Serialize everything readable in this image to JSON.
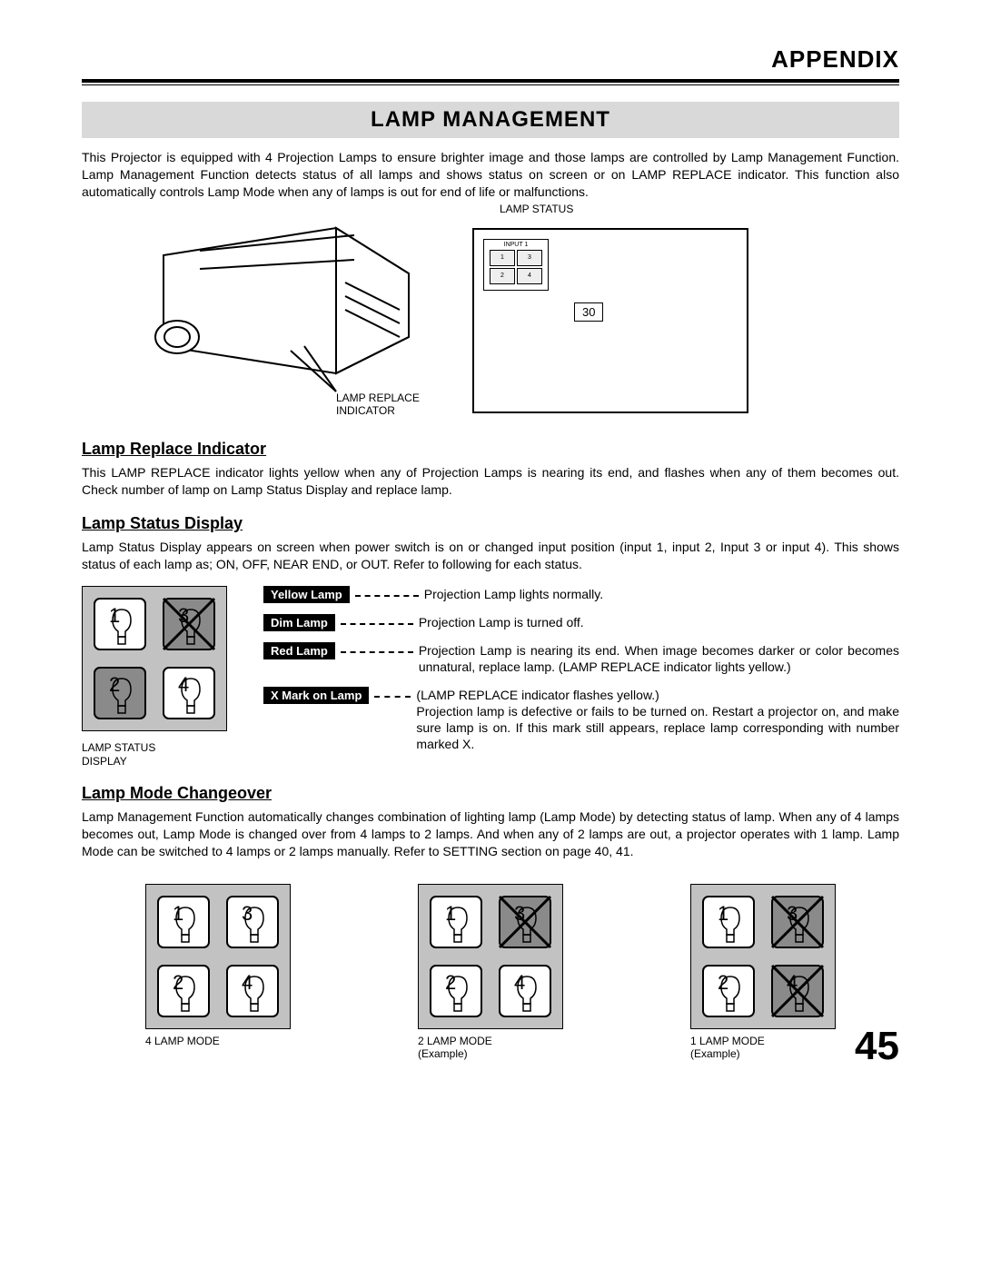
{
  "header": {
    "title": "APPENDIX"
  },
  "section": {
    "title": "LAMP MANAGEMENT"
  },
  "intro": "This Projector is equipped with 4 Projection Lamps to ensure brighter image and those lamps are controlled by Lamp Management Function.  Lamp Management Function detects status of all lamps and shows status on screen or on LAMP REPLACE indicator.  This function also automatically controls Lamp Mode when any of lamps is out for end of life or malfunctions.",
  "fig": {
    "lamp_replace_caption": "LAMP REPLACE\nINDICATOR",
    "lamp_status_label": "LAMP STATUS",
    "screen_input_label": "INPUT 1",
    "screen_number": "30"
  },
  "replace": {
    "title": "Lamp Replace Indicator",
    "text": "This LAMP REPLACE indicator lights yellow when any of Projection Lamps is nearing its end, and flashes when any of them becomes out.  Check number of lamp on Lamp Status Display and replace lamp."
  },
  "status": {
    "title": "Lamp Status Display",
    "text": "Lamp Status Display appears on screen when power switch is on or changed input position (input 1, input 2, Input 3 or input 4). This shows status of each lamp as; ON, OFF, NEAR END, or OUT.  Refer to following for each status.",
    "display_caption": "LAMP STATUS\nDISPLAY",
    "lamp_numbers": [
      "1",
      "2",
      "3",
      "4"
    ],
    "legend": [
      {
        "label": "Yellow Lamp",
        "text": "Projection Lamp lights normally."
      },
      {
        "label": "Dim Lamp",
        "text": "Projection Lamp is turned off."
      },
      {
        "label": "Red Lamp",
        "text": "Projection Lamp is nearing its end.  When image becomes darker or color becomes unnatural, replace lamp.  (LAMP REPLACE indicator lights yellow.)"
      },
      {
        "label": "X Mark on Lamp",
        "text": "(LAMP REPLACE indicator flashes yellow.)\nProjection lamp is defective or fails to be turned on. Restart a projector on, and make sure lamp is on. If this mark still appears, replace lamp corresponding with number marked X."
      }
    ]
  },
  "mode": {
    "title": "Lamp Mode Changeover",
    "text": "Lamp Management Function automatically changes combination of lighting lamp (Lamp Mode) by detecting status of lamp. When any of 4 lamps becomes out, Lamp Mode is changed over from 4 lamps to 2 lamps.  And when any of 2 lamps are out, a projector operates with 1 lamp.  Lamp Mode can be switched to 4 lamps or 2 lamps manually.  Refer to SETTING section on page 40, 41.",
    "items": [
      {
        "caption": "4 LAMP MODE",
        "x_marks": []
      },
      {
        "caption": "2 LAMP MODE\n(Example)",
        "x_marks": [
          3
        ]
      },
      {
        "caption": "1 LAMP MODE\n(Example)",
        "x_marks": [
          3,
          4
        ]
      }
    ]
  },
  "page_number": "45",
  "colors": {
    "gray_bg": "#c2c2c2",
    "dim_bg": "#8a8a8a",
    "white": "#ffffff",
    "black": "#000000"
  }
}
